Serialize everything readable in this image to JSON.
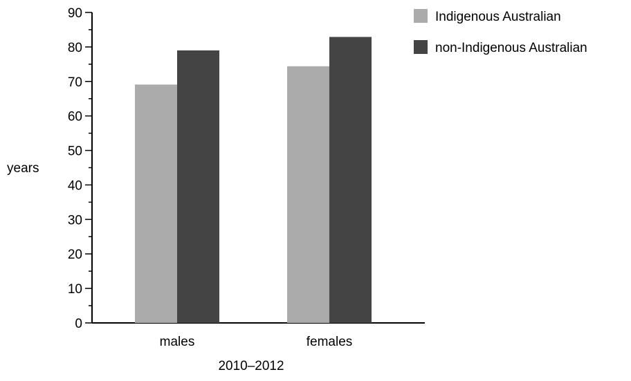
{
  "chart_data": {
    "type": "bar",
    "categories": [
      "males",
      "females"
    ],
    "series": [
      {
        "name": "Indigenous Australian",
        "values": [
          69.1,
          74.4
        ],
        "color": "#ababab"
      },
      {
        "name": "non-Indigenous Australian",
        "values": [
          79.0,
          82.9
        ],
        "color": "#444444"
      }
    ],
    "ylabel": "years",
    "xlabel": "2010–2012",
    "ylim": [
      0,
      90
    ],
    "y_ticks": [
      "0",
      "10",
      "20",
      "30",
      "40",
      "50",
      "60",
      "70",
      "80",
      "90"
    ],
    "grid": false,
    "legend_position": "top-right"
  }
}
